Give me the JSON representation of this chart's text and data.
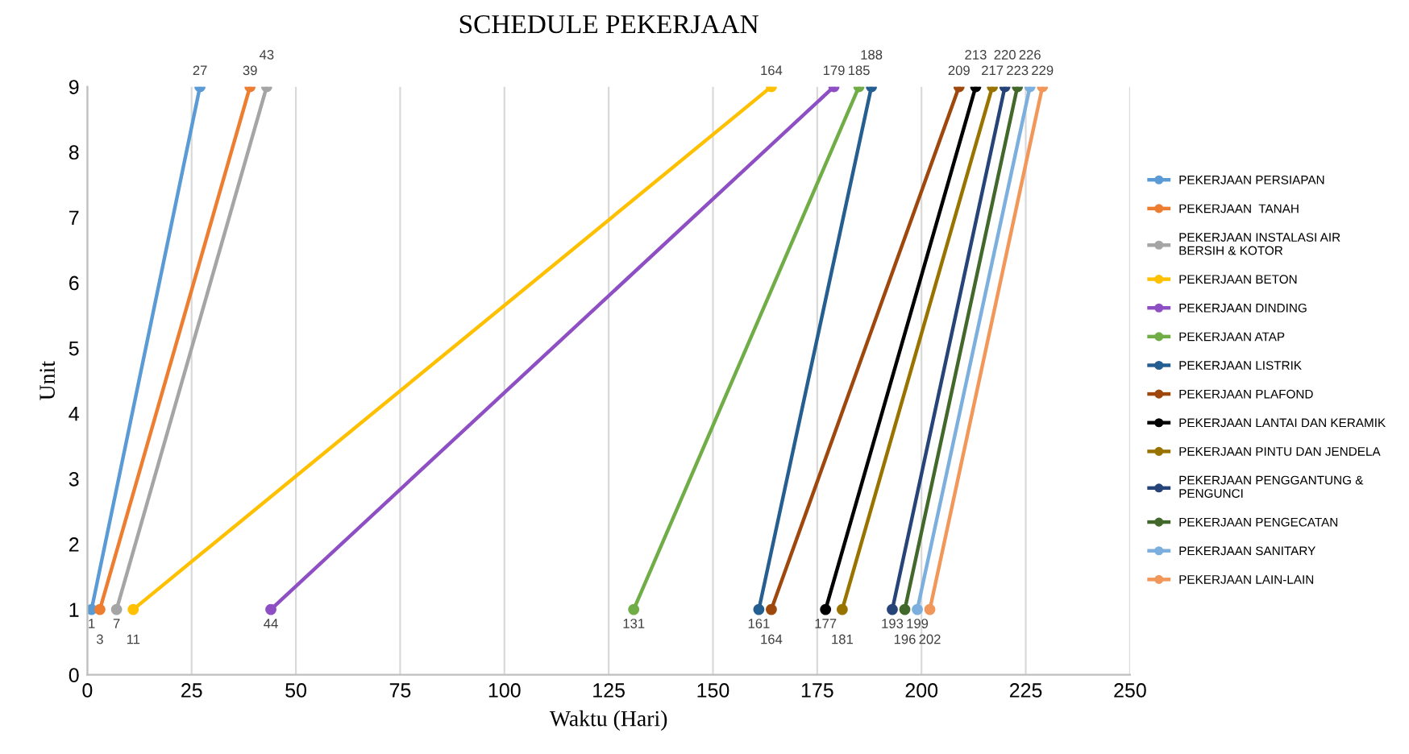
{
  "chart_data": {
    "type": "line",
    "title": "SCHEDULE PEKERJAAN",
    "xlabel": "Waktu (Hari)",
    "ylabel": "Unit",
    "xlim": [
      0,
      250
    ],
    "xticks": [
      0,
      25,
      50,
      75,
      100,
      125,
      150,
      175,
      200,
      225,
      250
    ],
    "ylim": [
      0,
      9
    ],
    "yticks": [
      0,
      1,
      2,
      3,
      4,
      5,
      6,
      7,
      8,
      9
    ],
    "grid": "x",
    "legend": "right",
    "marker": "circle",
    "line_style": "solid",
    "series": [
      {
        "name": "PEKERJAAN PERSIAPAN",
        "color": "#5b9bd5",
        "x": [
          1,
          27
        ],
        "values": [
          1,
          9
        ]
      },
      {
        "name": "PEKERJAAN  TANAH",
        "color": "#ed7d31",
        "x": [
          3,
          39
        ],
        "values": [
          1,
          9
        ]
      },
      {
        "name": "PEKERJAAN INSTALASI AIR BERSIH & KOTOR",
        "color": "#a5a5a5",
        "x": [
          7,
          43
        ],
        "values": [
          1,
          9
        ]
      },
      {
        "name": "PEKERJAAN BETON",
        "color": "#ffc000",
        "x": [
          11,
          164
        ],
        "values": [
          1,
          9
        ]
      },
      {
        "name": "PEKERJAAN DINDING",
        "color": "#8e4fc4",
        "x": [
          44,
          179
        ],
        "values": [
          1,
          9
        ]
      },
      {
        "name": "PEKERJAAN ATAP",
        "color": "#70ad47",
        "x": [
          131,
          185
        ],
        "values": [
          1,
          9
        ]
      },
      {
        "name": "PEKERJAAN LISTRIK",
        "color": "#255e91",
        "x": [
          161,
          188
        ],
        "values": [
          1,
          9
        ]
      },
      {
        "name": "PEKERJAAN PLAFOND",
        "color": "#9e480e",
        "x": [
          164,
          209
        ],
        "values": [
          1,
          9
        ]
      },
      {
        "name": "PEKERJAAN LANTAI DAN KERAMIK",
        "color": "#000000",
        "x": [
          177,
          213
        ],
        "values": [
          1,
          9
        ]
      },
      {
        "name": "PEKERJAAN PINTU DAN JENDELA",
        "color": "#997300",
        "x": [
          181,
          217
        ],
        "values": [
          1,
          9
        ]
      },
      {
        "name": "PEKERJAAN PENGGANTUNG & PENGUNCI",
        "color": "#264478",
        "x": [
          193,
          220
        ],
        "values": [
          1,
          9
        ]
      },
      {
        "name": "PEKERJAAN PENGECATAN",
        "color": "#43682b",
        "x": [
          196,
          223
        ],
        "values": [
          1,
          9
        ]
      },
      {
        "name": "PEKERJAAN SANITARY",
        "color": "#7cafdd",
        "x": [
          199,
          226
        ],
        "values": [
          1,
          9
        ]
      },
      {
        "name": "PEKERJAAN LAIN-LAIN",
        "color": "#f1975a",
        "x": [
          202,
          229
        ],
        "values": [
          1,
          9
        ]
      }
    ],
    "annotations": [
      {
        "text": "1",
        "x": 1,
        "y": 1
      },
      {
        "text": "27",
        "x": 27,
        "y": 9
      },
      {
        "text": "3",
        "x": 3,
        "y": 1
      },
      {
        "text": "39",
        "x": 39,
        "y": 9
      },
      {
        "text": "7",
        "x": 7,
        "y": 1
      },
      {
        "text": "43",
        "x": 43,
        "y": 9
      },
      {
        "text": "11",
        "x": 11,
        "y": 1
      },
      {
        "text": "164",
        "x": 164,
        "y": 9
      },
      {
        "text": "44",
        "x": 44,
        "y": 1
      },
      {
        "text": "179",
        "x": 179,
        "y": 9
      },
      {
        "text": "131",
        "x": 131,
        "y": 1
      },
      {
        "text": "185",
        "x": 185,
        "y": 9
      },
      {
        "text": "161",
        "x": 161,
        "y": 1
      },
      {
        "text": "188",
        "x": 188,
        "y": 9
      },
      {
        "text": "164",
        "x": 164,
        "y": 1
      },
      {
        "text": "209",
        "x": 209,
        "y": 9
      },
      {
        "text": "177",
        "x": 177,
        "y": 1
      },
      {
        "text": "213",
        "x": 213,
        "y": 9
      },
      {
        "text": "181",
        "x": 181,
        "y": 1
      },
      {
        "text": "217",
        "x": 217,
        "y": 9
      },
      {
        "text": "193",
        "x": 193,
        "y": 1
      },
      {
        "text": "220",
        "x": 220,
        "y": 9
      },
      {
        "text": "196",
        "x": 196,
        "y": 1
      },
      {
        "text": "223",
        "x": 223,
        "y": 9
      },
      {
        "text": "199",
        "x": 199,
        "y": 1
      },
      {
        "text": "226",
        "x": 226,
        "y": 9
      },
      {
        "text": "202",
        "x": 202,
        "y": 1
      },
      {
        "text": "229",
        "x": 229,
        "y": 9
      }
    ]
  }
}
